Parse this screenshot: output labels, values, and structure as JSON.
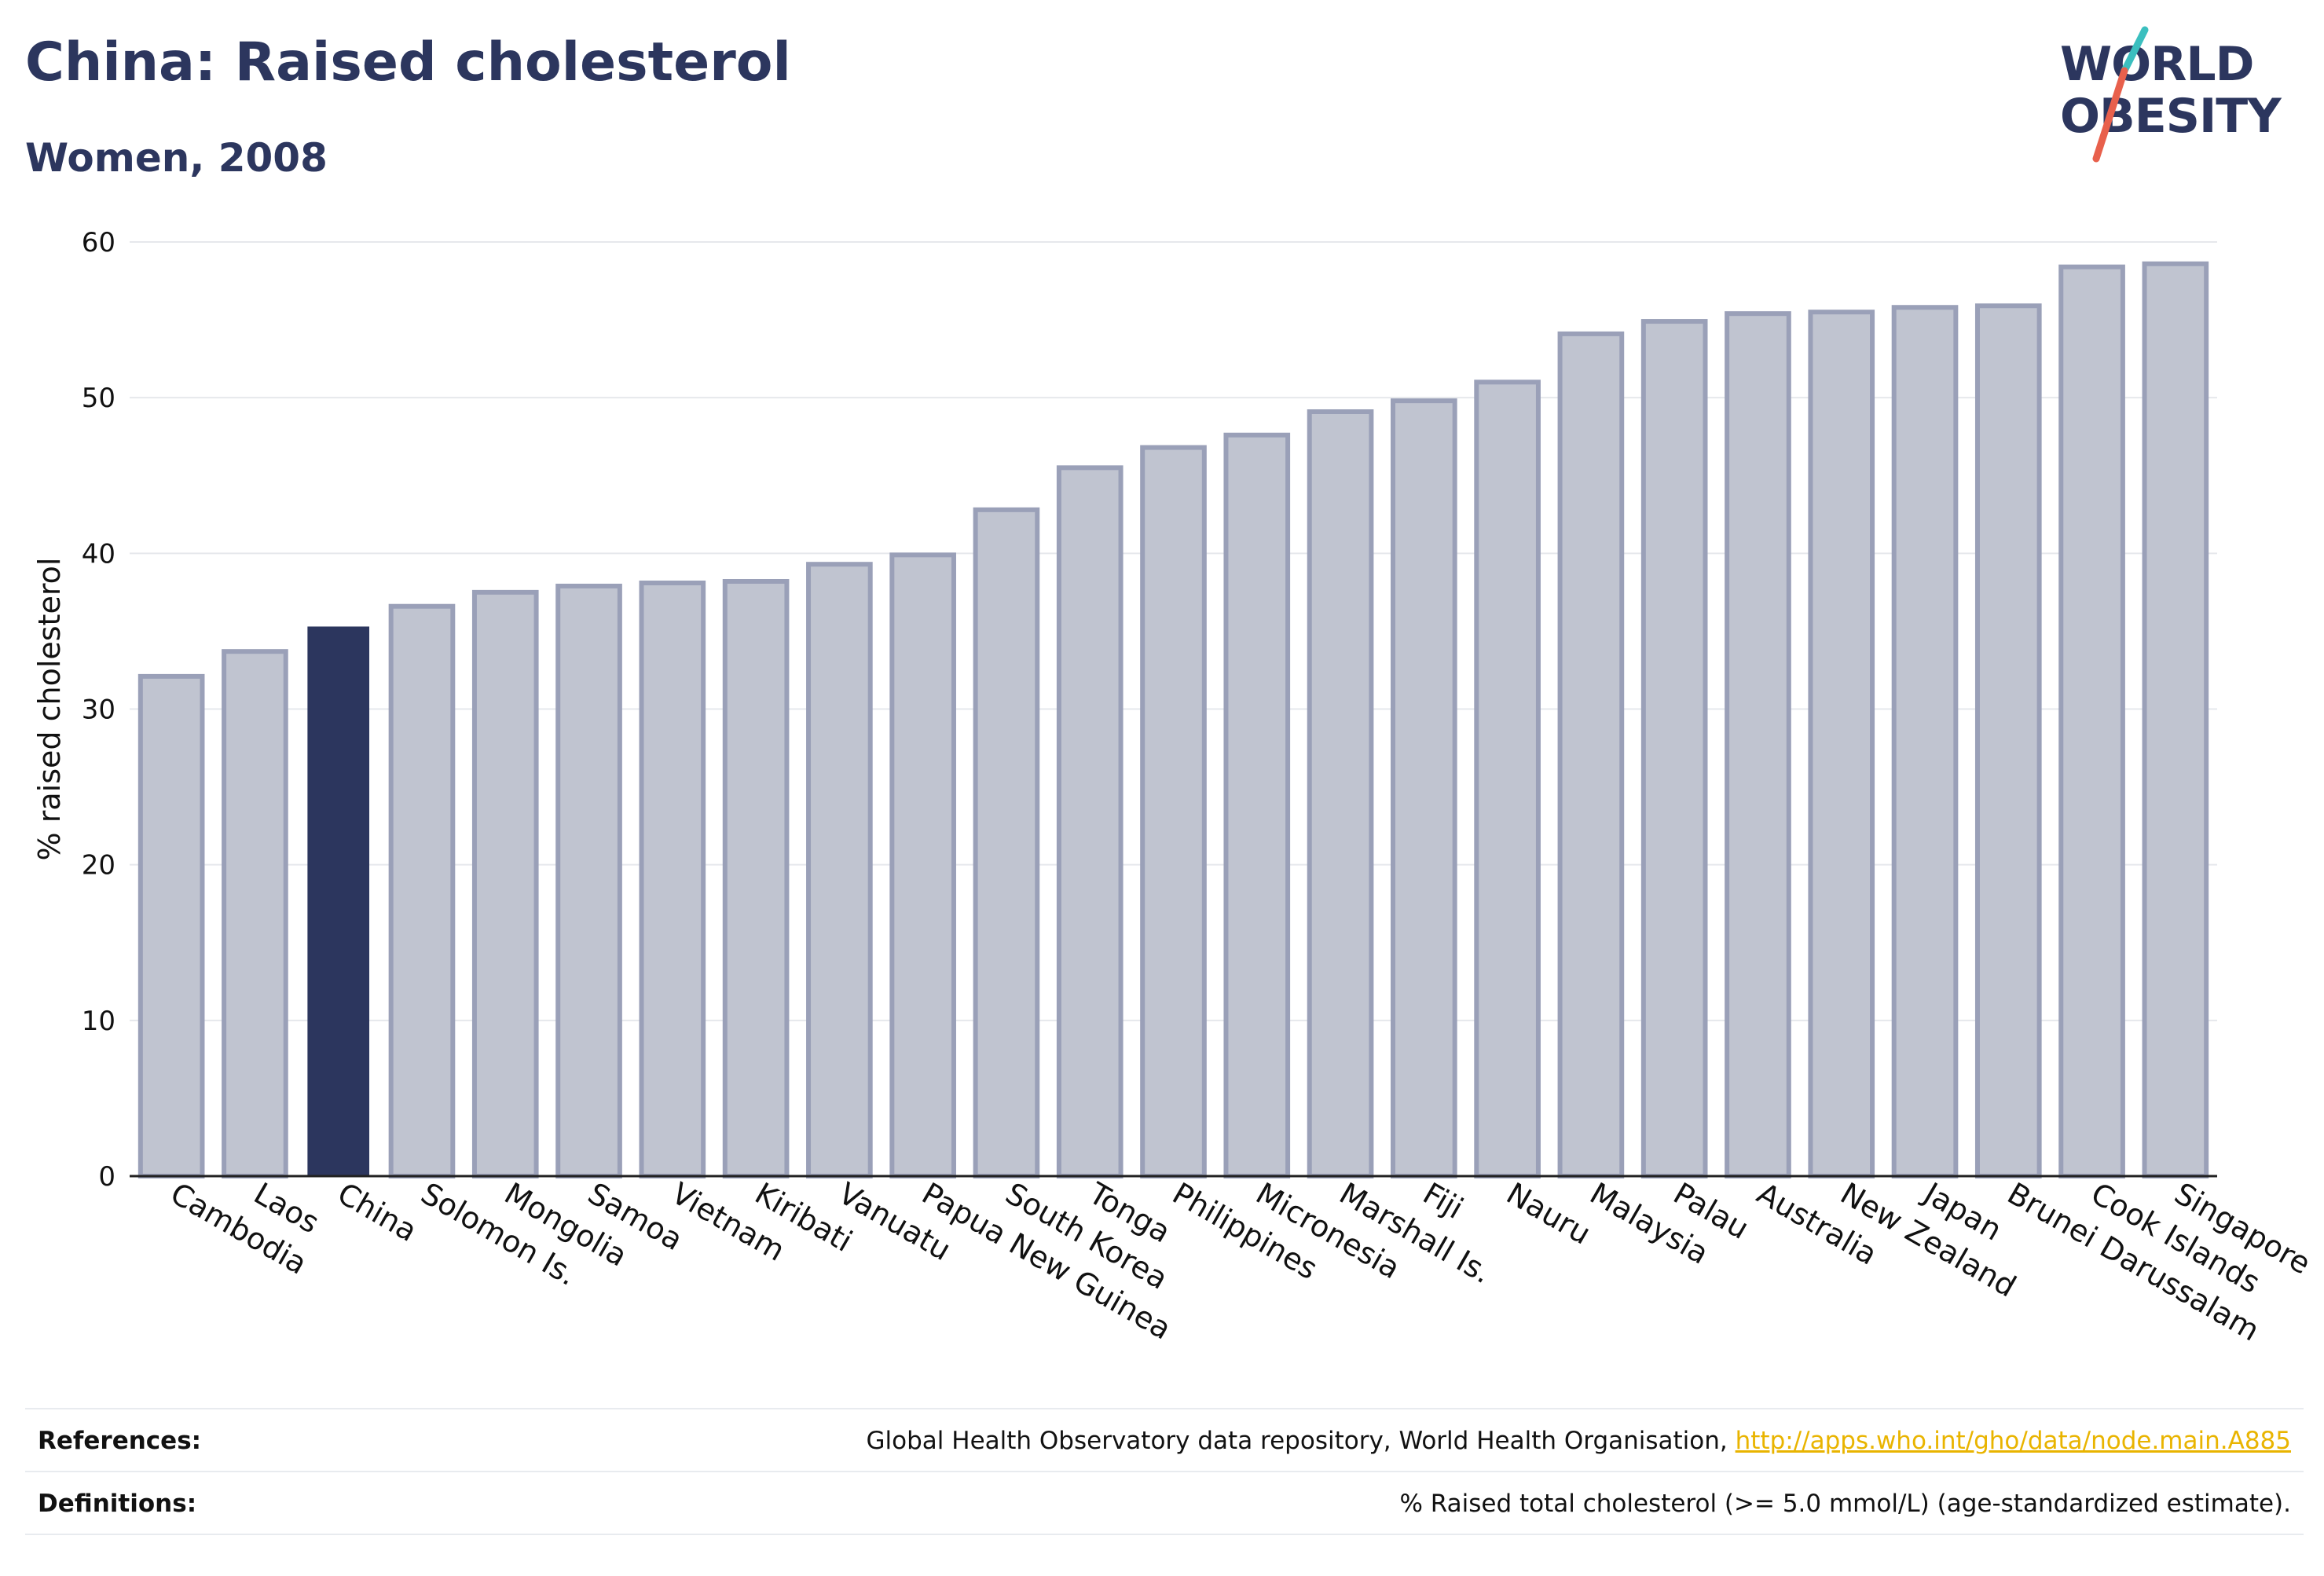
{
  "header": {
    "title": "China: Raised cholesterol",
    "subtitle": "Women, 2008"
  },
  "logo": {
    "line1": "WORLD",
    "line2": "OBESITY",
    "colors": {
      "text": "#2c365e",
      "slash_top": "#3bbfbf",
      "slash_bottom": "#e8604c"
    }
  },
  "chart_data": {
    "type": "bar",
    "ylabel": "% raised cholesterol",
    "ylim": [
      0,
      60
    ],
    "yticks": [
      0,
      10,
      20,
      30,
      40,
      50,
      60
    ],
    "grid": true,
    "highlight": "China",
    "colors": {
      "bar": "#c0c4d0",
      "bar_edge": "#9aa0b8",
      "highlight": "#2c365e",
      "grid": "#e6e8ec",
      "axis": "#222222"
    },
    "categories": [
      "Cambodia",
      "Laos",
      "China",
      "Solomon Is.",
      "Mongolia",
      "Samoa",
      "Vietnam",
      "Kiribati",
      "Vanuatu",
      "Papua New Guinea",
      "South Korea",
      "Tonga",
      "Philippines",
      "Micronesia",
      "Marshall Is.",
      "Fiji",
      "Nauru",
      "Malaysia",
      "Palau",
      "Australia",
      "New Zealand",
      "Japan",
      "Brunei Darussalam",
      "Cook Islands",
      "Singapore"
    ],
    "values": [
      32.1,
      33.7,
      35.3,
      36.6,
      37.5,
      37.9,
      38.1,
      38.2,
      39.3,
      39.9,
      42.8,
      45.5,
      46.8,
      47.6,
      49.1,
      49.8,
      51.0,
      54.1,
      54.9,
      55.4,
      55.5,
      55.8,
      55.9,
      58.4,
      58.6
    ]
  },
  "footer": {
    "references_label": "References:",
    "references_text": "Global Health Observatory data repository, World Health Organisation, ",
    "references_link": "http://apps.who.int/gho/data/node.main.A885",
    "definitions_label": "Definitions:",
    "definitions_text": "% Raised total cholesterol (>= 5.0 mmol/L) (age-standardized estimate)."
  }
}
